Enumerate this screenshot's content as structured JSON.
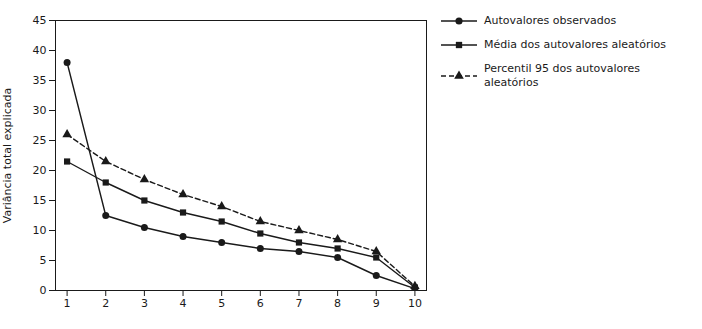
{
  "chart_data": {
    "type": "line",
    "ylabel": "Variância total explicada",
    "x": [
      1,
      2,
      3,
      4,
      5,
      6,
      7,
      8,
      9,
      10
    ],
    "series": [
      {
        "name": "Autovalores observados",
        "color": "#1a1a1a",
        "marker": "circle",
        "line_style": "solid",
        "values": [
          38.0,
          12.5,
          10.5,
          9.0,
          8.0,
          7.0,
          6.5,
          5.5,
          2.5,
          0.3
        ]
      },
      {
        "name": "Média dos autovalores aleatórios",
        "color": "#1a1a1a",
        "marker": "square",
        "line_style": "solid",
        "values": [
          21.5,
          18.0,
          15.0,
          13.0,
          11.5,
          9.5,
          8.0,
          7.0,
          5.5,
          0.5
        ]
      },
      {
        "name": "Percentil 95 dos autovalores aleatórios",
        "color": "#1a1a1a",
        "marker": "triangle",
        "line_style": "dashed",
        "values": [
          26.0,
          21.5,
          18.5,
          16.0,
          14.0,
          11.5,
          10.0,
          8.5,
          6.5,
          0.7
        ]
      }
    ],
    "xlim": [
      0.7,
      10.3
    ],
    "ylim": [
      0,
      45
    ],
    "xticks": [
      1,
      2,
      3,
      4,
      5,
      6,
      7,
      8,
      9,
      10
    ],
    "yticks": [
      0,
      5,
      10,
      15,
      20,
      25,
      30,
      35,
      40,
      45
    ],
    "grid": false,
    "legend": "right"
  }
}
